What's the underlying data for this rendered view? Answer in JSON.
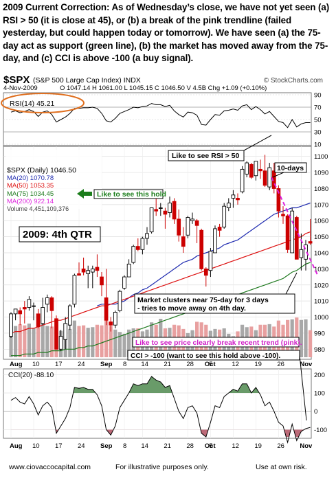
{
  "header": {
    "text": "2009 Current Correction:   As of Wednesday’s close, we have not yet seen (a) RSI > 50 (it is close at 45), or (b) a break of the pink trendline (failed yesterday, but could happen today or tomorrow).   We have seen (a) the 75-day act as support (green line), (b) the market has moved away from the 75-day, and (c) CCI is above -100 (a buy signal)."
  },
  "stockcharts": {
    "symbol": "$SPX",
    "name": "(S&P 500 Large Cap Index) INDX",
    "watermark": "© StockCharts.com",
    "date": "4-Nov-2009",
    "ohlc_line": "O 1047.14  H 1061.00  L 1045.15  C 1046.50  V 4.5B  Chg +1.09 (+0.10%)",
    "chg_arrow": "▲"
  },
  "colors": {
    "price_up": "#000000",
    "price_down": "#cc0000",
    "ma20": "#1f2bb0",
    "ma50": "#dd1111",
    "ma75": "#1f7a1f",
    "ma200": "#dd22dd",
    "volume": "#a8a8a8",
    "volume_down": "#e8a0a0",
    "cci_fill": "#4f8a4f",
    "cci_fill_neg": "#b05060",
    "highlight_circle": "#e07020",
    "hold_label": "#1b7d1b",
    "hold_arrow": "#1b7d1b",
    "trend_label": "#d020c8"
  },
  "legend": {
    "rsi": "RSI(14) 45.21",
    "price": "$SPX (Daily) 1046.50",
    "ma20": "MA(20) 1070.78",
    "ma50": "MA(50) 1053.35",
    "ma75": "MA(75) 1034.45",
    "ma200": "MA(200) 922.14",
    "volume": "Volume 4,451,109,376",
    "cci": "CCI(20) -88.10"
  },
  "annotations": {
    "rsi_target": "Like to see RSI > 50",
    "hold": "Like to see this hold",
    "ten_days": "10-days",
    "quarter": "2009: 4th QTR",
    "clusters": "Market clusters near 75-day for 3 days - tries to move away on 4th day.",
    "trend_break": "Like to see price clearly break recent trend (pink).",
    "cci_note": "CCI > -100 (want to see this hold above -100)."
  },
  "footer": {
    "site": "www.ciovaccocapital.com",
    "purpose": "For illustrative purposes only.",
    "risk": "Use at own risk."
  },
  "chart_data": {
    "type": "candlestick",
    "title": "$SPX (S&P 500 Large Cap Index) INDX",
    "x_ticks": [
      "Aug",
      "10",
      "17",
      "24",
      "Sep",
      "8",
      "14",
      "21",
      "28",
      "Oct",
      "5",
      "12",
      "19",
      "26",
      "Nov"
    ],
    "price_axis": {
      "ticks": [
        980,
        990,
        1000,
        1010,
        1020,
        1030,
        1040,
        1050,
        1060,
        1070,
        1080,
        1090,
        1100
      ],
      "ylim": [
        975,
        1105
      ]
    },
    "rsi_axis": {
      "ticks": [
        90,
        70,
        50,
        30,
        10
      ],
      "ylim": [
        10,
        90
      ]
    },
    "cci_axis": {
      "ticks": [
        200,
        100,
        0,
        -100
      ],
      "ylim": [
        -140,
        220
      ]
    },
    "dates": [
      "Aug 3",
      "Aug 4",
      "Aug 5",
      "Aug 6",
      "Aug 7",
      "Aug 10",
      "Aug 11",
      "Aug 12",
      "Aug 13",
      "Aug 14",
      "Aug 17",
      "Aug 18",
      "Aug 19",
      "Aug 20",
      "Aug 21",
      "Aug 24",
      "Aug 25",
      "Aug 26",
      "Aug 27",
      "Aug 28",
      "Aug 31",
      "Sep 1",
      "Sep 2",
      "Sep 3",
      "Sep 4",
      "Sep 8",
      "Sep 9",
      "Sep 10",
      "Sep 11",
      "Sep 14",
      "Sep 15",
      "Sep 16",
      "Sep 17",
      "Sep 18",
      "Sep 21",
      "Sep 22",
      "Sep 23",
      "Sep 24",
      "Sep 25",
      "Sep 28",
      "Sep 29",
      "Sep 30",
      "Oct 1",
      "Oct 2",
      "Oct 5",
      "Oct 6",
      "Oct 7",
      "Oct 8",
      "Oct 9",
      "Oct 12",
      "Oct 13",
      "Oct 14",
      "Oct 15",
      "Oct 16",
      "Oct 19",
      "Oct 20",
      "Oct 21",
      "Oct 22",
      "Oct 23",
      "Oct 26",
      "Oct 27",
      "Oct 28",
      "Oct 29",
      "Oct 30",
      "Nov 2",
      "Nov 3",
      "Nov 4"
    ],
    "open": [
      988,
      1002,
      1004,
      1006,
      1006,
      1007,
      1002,
      996,
      1008,
      1012,
      999,
      980,
      986,
      995,
      1008,
      1027,
      1030,
      1027,
      1028,
      1031,
      1025,
      1012,
      997,
      995,
      1004,
      1018,
      1025,
      1034,
      1044,
      1042,
      1049,
      1053,
      1067,
      1068,
      1066,
      1065,
      1072,
      1061,
      1050,
      1051,
      1060,
      1060,
      1054,
      1030,
      1029,
      1040,
      1056,
      1056,
      1068,
      1074,
      1074,
      1078,
      1089,
      1095,
      1088,
      1092,
      1091,
      1081,
      1091,
      1080,
      1064,
      1063,
      1040,
      1062,
      1037,
      1036,
      1047
    ],
    "high": [
      1003,
      1005,
      1006,
      1010,
      1013,
      1009,
      1005,
      1012,
      1014,
      1013,
      1001,
      992,
      1000,
      1008,
      1027,
      1034,
      1037,
      1032,
      1032,
      1039,
      1028,
      1030,
      1000,
      1004,
      1017,
      1026,
      1036,
      1045,
      1049,
      1050,
      1056,
      1068,
      1074,
      1071,
      1068,
      1075,
      1074,
      1067,
      1056,
      1063,
      1065,
      1061,
      1055,
      1031,
      1043,
      1057,
      1058,
      1071,
      1074,
      1079,
      1077,
      1094,
      1097,
      1096,
      1097,
      1098,
      1101,
      1096,
      1096,
      1082,
      1069,
      1064,
      1068,
      1063,
      1052,
      1048,
      1061
    ],
    "low": [
      987,
      998,
      995,
      996,
      1004,
      998,
      993,
      995,
      1003,
      993,
      980,
      979,
      980,
      992,
      1006,
      1026,
      1026,
      1018,
      1018,
      1025,
      1013,
      995,
      991,
      993,
      1003,
      1017,
      1025,
      1033,
      1041,
      1039,
      1045,
      1052,
      1063,
      1063,
      1055,
      1062,
      1058,
      1047,
      1040,
      1049,
      1058,
      1046,
      1029,
      1019,
      1025,
      1040,
      1050,
      1055,
      1066,
      1068,
      1070,
      1077,
      1087,
      1086,
      1085,
      1086,
      1081,
      1079,
      1077,
      1062,
      1058,
      1040,
      1040,
      1036,
      1029,
      1029,
      1045
    ],
    "close": [
      1002,
      1005,
      1002,
      1005,
      1011,
      1007,
      994,
      1006,
      1012,
      1004,
      980,
      988,
      996,
      1007,
      1026,
      1026,
      1028,
      1029,
      1030,
      1029,
      1020,
      998,
      995,
      1003,
      1016,
      1025,
      1033,
      1044,
      1042,
      1049,
      1052,
      1068,
      1066,
      1068,
      1064,
      1071,
      1061,
      1051,
      1044,
      1062,
      1061,
      1057,
      1030,
      1026,
      1041,
      1055,
      1054,
      1069,
      1071,
      1076,
      1073,
      1092,
      1096,
      1087,
      1097,
      1091,
      1082,
      1093,
      1080,
      1066,
      1063,
      1042,
      1066,
      1036,
      1042,
      1045,
      1046
    ],
    "volume": [
      5.8,
      5.2,
      5.5,
      5.3,
      5.6,
      4.9,
      5.4,
      5.8,
      5.2,
      5.1,
      4.6,
      4.4,
      4.6,
      4.7,
      6.1,
      5.2,
      5.3,
      4.9,
      5.0,
      5.4,
      5.3,
      6.3,
      5.2,
      4.6,
      4.2,
      3.9,
      4.6,
      4.8,
      4.8,
      4.3,
      4.6,
      5.8,
      5.4,
      6.4,
      4.8,
      4.9,
      5.4,
      5.3,
      4.7,
      4.0,
      4.5,
      5.9,
      5.8,
      5.4,
      4.4,
      4.7,
      4.6,
      4.8,
      3.9,
      3.5,
      4.3,
      5.4,
      5.0,
      5.1,
      4.5,
      5.4,
      5.4,
      5.5,
      5.1,
      6.1,
      5.4,
      6.2,
      6.3,
      6.6,
      6.2,
      6.3,
      4.5
    ],
    "series": [
      {
        "name": "MA(20)",
        "values": [
          null,
          null,
          null,
          null,
          null,
          null,
          null,
          null,
          null,
          null,
          null,
          null,
          null,
          null,
          null,
          null,
          null,
          null,
          null,
          1007,
          1008,
          1008,
          1008,
          1008,
          1009,
          1010,
          1012,
          1014,
          1015,
          1017,
          1018,
          1020,
          1022,
          1024,
          1026,
          1028,
          1030,
          1032,
          1034,
          1035,
          1036,
          1038,
          1039,
          1040,
          1041,
          1042,
          1043,
          1045,
          1046,
          1047,
          1048,
          1050,
          1052,
          1054,
          1056,
          1058,
          1060,
          1062,
          1064,
          1065,
          1066,
          1067,
          1068,
          1068,
          1069,
          1070,
          1071
        ]
      },
      {
        "name": "MA(50)",
        "values": [
          990,
          991,
          991,
          992,
          993,
          993,
          994,
          995,
          996,
          997,
          998,
          998,
          999,
          1000,
          1001,
          1002,
          1003,
          1004,
          1005,
          1006,
          1007,
          1007,
          1008,
          1009,
          1010,
          1011,
          1012,
          1013,
          1014,
          1015,
          1016,
          1017,
          1018,
          1019,
          1020,
          1021,
          1022,
          1023,
          1024,
          1025,
          1026,
          1027,
          1028,
          1029,
          1030,
          1031,
          1032,
          1033,
          1034,
          1035,
          1036,
          1037,
          1038,
          1039,
          1040,
          1041,
          1042,
          1043,
          1044,
          1045,
          1046,
          1047,
          1048,
          1049,
          1050,
          1052,
          1053
        ]
      },
      {
        "name": "MA(75)",
        "values": [
          976,
          976,
          976,
          977,
          977,
          977,
          978,
          978,
          978,
          979,
          979,
          979,
          980,
          980,
          980,
          981,
          981,
          982,
          982,
          983,
          984,
          985,
          986,
          987,
          988,
          989,
          990,
          991,
          992,
          993,
          994,
          995,
          996,
          997,
          998,
          999,
          1000,
          1001,
          1002,
          1003,
          1004,
          1005,
          1006,
          1007,
          1008,
          1009,
          1010,
          1011,
          1012,
          1013,
          1014,
          1015,
          1016,
          1017,
          1018,
          1019,
          1020,
          1021,
          1022,
          1023,
          1024,
          1026,
          1028,
          1029,
          1031,
          1033,
          1034
        ]
      },
      {
        "name": "RSI(14)",
        "values": [
          62,
          64,
          61,
          63,
          66,
          63,
          55,
          62,
          64,
          58,
          46,
          50,
          54,
          60,
          68,
          68,
          69,
          69,
          70,
          68,
          60,
          48,
          46,
          52,
          60,
          63,
          66,
          70,
          69,
          71,
          72,
          76,
          74,
          74,
          71,
          73,
          64,
          58,
          54,
          62,
          61,
          57,
          42,
          41,
          50,
          58,
          57,
          64,
          65,
          67,
          65,
          72,
          74,
          66,
          71,
          66,
          59,
          63,
          55,
          47,
          45,
          37,
          50,
          38,
          43,
          45,
          45
        ]
      },
      {
        "name": "CCI(20)",
        "values": [
          60,
          75,
          50,
          40,
          80,
          40,
          -20,
          30,
          50,
          20,
          -120,
          -80,
          -40,
          20,
          130,
          125,
          130,
          120,
          120,
          90,
          30,
          -100,
          -130,
          -80,
          20,
          60,
          100,
          150,
          140,
          150,
          150,
          190,
          170,
          160,
          130,
          140,
          70,
          0,
          -40,
          20,
          30,
          -10,
          -120,
          -140,
          -60,
          30,
          20,
          80,
          100,
          120,
          110,
          150,
          150,
          100,
          130,
          90,
          30,
          50,
          0,
          -60,
          -80,
          -170,
          -70,
          -160,
          -110,
          -95,
          -88
        ]
      }
    ]
  }
}
